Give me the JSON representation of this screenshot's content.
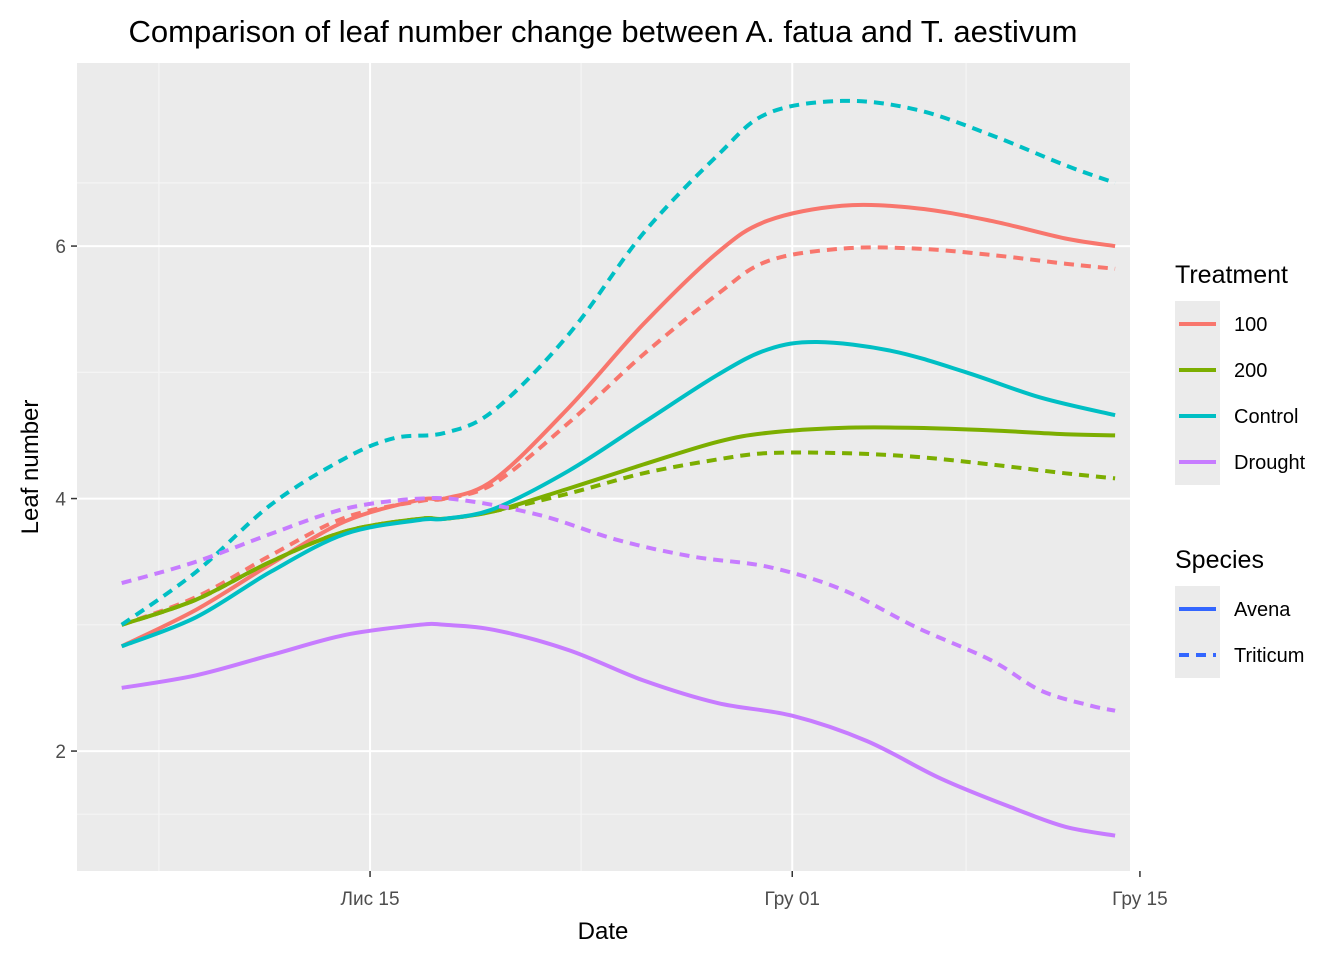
{
  "chart_data": {
    "type": "line",
    "title": "Comparison of leaf number change between A. fatua and T. aestivum",
    "xlabel": "Date",
    "ylabel": "Leaf number",
    "x_ticks": [
      "Лис 15",
      "Гру 01",
      "Гру 15"
    ],
    "y_ticks": [
      2,
      4,
      6
    ],
    "ylim": [
      1.05,
      7.45
    ],
    "xlim_days_from_first": [
      -1.8,
      40.6
    ],
    "legend_position": "right",
    "grid": true,
    "treatment_legend": {
      "title": "Treatment",
      "entries": [
        {
          "label": "100",
          "color": "#F8766D"
        },
        {
          "label": "200",
          "color": "#7CAE00"
        },
        {
          "label": "Control",
          "color": "#00BFC4"
        },
        {
          "label": "Drought",
          "color": "#C77CFF"
        }
      ]
    },
    "species_legend": {
      "title": "Species",
      "entries": [
        {
          "label": "Avena",
          "linetype": "solid",
          "color": "#3366FF"
        },
        {
          "label": "Triticum",
          "linetype": "dashed",
          "color": "#3366FF"
        }
      ]
    },
    "series": [
      {
        "treatment": "100",
        "species": "Avena",
        "color": "#F8766D",
        "dashed": false,
        "points": [
          [
            0,
            2.83
          ],
          [
            3,
            3.12
          ],
          [
            6,
            3.48
          ],
          [
            9,
            3.82
          ],
          [
            12,
            3.99
          ],
          [
            13,
            4.0
          ],
          [
            15,
            4.15
          ],
          [
            18,
            4.72
          ],
          [
            21,
            5.38
          ],
          [
            24,
            5.95
          ],
          [
            26,
            6.2
          ],
          [
            29,
            6.32
          ],
          [
            32,
            6.3
          ],
          [
            35,
            6.2
          ],
          [
            38,
            6.06
          ],
          [
            40,
            6.0
          ]
        ]
      },
      {
        "treatment": "100",
        "species": "Triticum",
        "color": "#F8766D",
        "dashed": false,
        "points": [
          [
            0,
            3.0
          ],
          [
            3,
            3.22
          ],
          [
            6,
            3.55
          ],
          [
            9,
            3.85
          ],
          [
            12,
            3.98
          ],
          [
            13,
            4.0
          ],
          [
            15,
            4.12
          ],
          [
            18,
            4.6
          ],
          [
            21,
            5.14
          ],
          [
            24,
            5.62
          ],
          [
            26,
            5.88
          ],
          [
            29,
            5.98
          ],
          [
            32,
            5.98
          ],
          [
            35,
            5.93
          ],
          [
            38,
            5.86
          ],
          [
            40,
            5.82
          ]
        ]
      },
      {
        "treatment": "200",
        "species": "Avena",
        "color": "#7CAE00",
        "dashed": false,
        "points": [
          [
            0,
            3.0
          ],
          [
            3,
            3.2
          ],
          [
            6,
            3.5
          ],
          [
            9,
            3.74
          ],
          [
            12,
            3.84
          ],
          [
            13,
            3.84
          ],
          [
            15,
            3.9
          ],
          [
            18,
            4.08
          ],
          [
            21,
            4.27
          ],
          [
            24,
            4.45
          ],
          [
            26,
            4.52
          ],
          [
            29,
            4.56
          ],
          [
            32,
            4.56
          ],
          [
            35,
            4.54
          ],
          [
            38,
            4.51
          ],
          [
            40,
            4.5
          ]
        ]
      },
      {
        "treatment": "200",
        "species": "Triticum",
        "color": "#7CAE00",
        "dashed": false,
        "points": [
          [
            0,
            3.0
          ],
          [
            3,
            3.2
          ],
          [
            6,
            3.5
          ],
          [
            9,
            3.74
          ],
          [
            12,
            3.84
          ],
          [
            13,
            3.84
          ],
          [
            15,
            3.9
          ],
          [
            18,
            4.04
          ],
          [
            21,
            4.2
          ],
          [
            24,
            4.31
          ],
          [
            26,
            4.36
          ],
          [
            29,
            4.36
          ],
          [
            32,
            4.33
          ],
          [
            35,
            4.27
          ],
          [
            38,
            4.2
          ],
          [
            40,
            4.16
          ]
        ]
      },
      {
        "treatment": "Control",
        "species": "Avena",
        "color": "#00BFC4",
        "dashed": false,
        "points": [
          [
            0,
            2.83
          ],
          [
            3,
            3.06
          ],
          [
            6,
            3.42
          ],
          [
            9,
            3.72
          ],
          [
            12,
            3.83
          ],
          [
            13,
            3.84
          ],
          [
            15,
            3.92
          ],
          [
            18,
            4.22
          ],
          [
            21,
            4.6
          ],
          [
            24,
            4.98
          ],
          [
            26,
            5.18
          ],
          [
            28,
            5.24
          ],
          [
            31,
            5.17
          ],
          [
            34,
            5.0
          ],
          [
            37,
            4.8
          ],
          [
            40,
            4.66
          ]
        ]
      },
      {
        "treatment": "Control",
        "species": "Triticum",
        "color": "#00BFC4",
        "dashed": false,
        "points": [
          [
            0,
            3.0
          ],
          [
            3,
            3.42
          ],
          [
            6,
            3.95
          ],
          [
            9,
            4.32
          ],
          [
            11,
            4.48
          ],
          [
            13,
            4.52
          ],
          [
            15,
            4.7
          ],
          [
            18,
            5.3
          ],
          [
            21,
            6.1
          ],
          [
            24,
            6.72
          ],
          [
            26,
            7.05
          ],
          [
            29,
            7.15
          ],
          [
            32,
            7.08
          ],
          [
            35,
            6.88
          ],
          [
            38,
            6.64
          ],
          [
            40,
            6.5
          ]
        ]
      },
      {
        "treatment": "Drought",
        "species": "Avena",
        "color": "#C77CFF",
        "dashed": false,
        "points": [
          [
            0,
            2.5
          ],
          [
            3,
            2.6
          ],
          [
            6,
            2.76
          ],
          [
            9,
            2.92
          ],
          [
            12,
            3.0
          ],
          [
            13,
            3.0
          ],
          [
            15,
            2.96
          ],
          [
            18,
            2.8
          ],
          [
            21,
            2.56
          ],
          [
            24,
            2.38
          ],
          [
            27,
            2.28
          ],
          [
            30,
            2.08
          ],
          [
            33,
            1.78
          ],
          [
            36,
            1.54
          ],
          [
            38,
            1.4
          ],
          [
            40,
            1.33
          ]
        ]
      },
      {
        "treatment": "Drought",
        "species": "Triticum",
        "color": "#C77CFF",
        "dashed": false,
        "points": [
          [
            0,
            3.33
          ],
          [
            3,
            3.5
          ],
          [
            6,
            3.72
          ],
          [
            9,
            3.92
          ],
          [
            12,
            4.0
          ],
          [
            14,
            3.98
          ],
          [
            17,
            3.86
          ],
          [
            20,
            3.67
          ],
          [
            23,
            3.54
          ],
          [
            26,
            3.46
          ],
          [
            29,
            3.28
          ],
          [
            32,
            2.98
          ],
          [
            35,
            2.72
          ],
          [
            37,
            2.48
          ],
          [
            39,
            2.36
          ],
          [
            40,
            2.32
          ]
        ]
      }
    ]
  }
}
